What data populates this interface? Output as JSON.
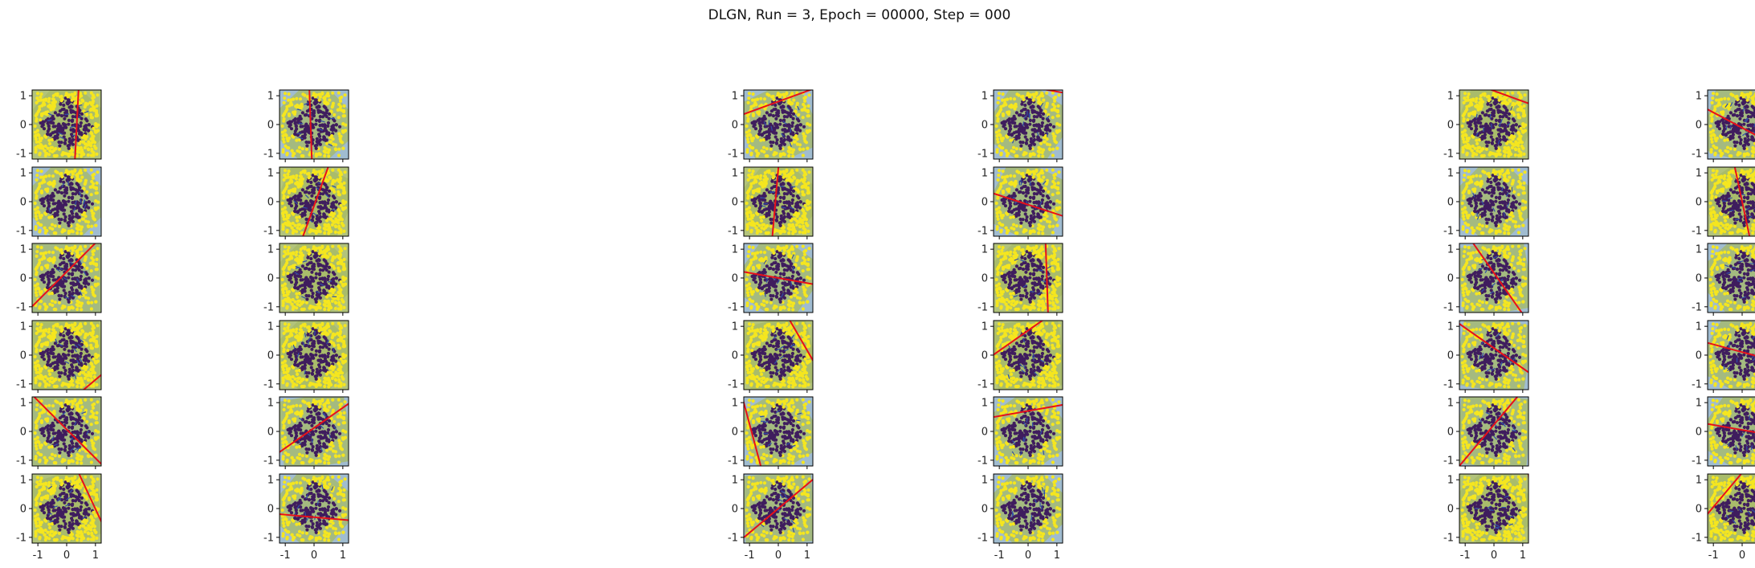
{
  "title": "DLGN, Run = 3, Epoch = 00000, Step = 000",
  "colors": {
    "outer_points": "#f5e61f",
    "inner_points": "#3f1d5e",
    "region_blue": "#8fb0c8",
    "region_green": "#a5b965",
    "arrow": "#2f4fa8",
    "boundary": "#e8101a",
    "axes": "#000000"
  },
  "chart_data": {
    "type": "scatter",
    "description_free": true,
    "rows": 6,
    "cols": 6,
    "xlim": [
      -1.2,
      1.2
    ],
    "ylim": [
      -1.2,
      1.2
    ],
    "xticks": [
      -1,
      0,
      1
    ],
    "yticks": [
      -1,
      0,
      1
    ],
    "xtick_labels": [
      "-1",
      "0",
      "1"
    ],
    "ytick_labels": [
      "-1",
      "0",
      "1"
    ],
    "classes": [
      {
        "region": "|x|+|y| < 1",
        "color": "#3f1d5e"
      },
      {
        "region": "|x|+|y| >= 1",
        "color": "#f5e61f"
      }
    ],
    "panels": [
      {
        "row": 0,
        "col": 0,
        "angle": -3,
        "offset": 0.35,
        "shade": "half"
      },
      {
        "row": 0,
        "col": 1,
        "angle": 2,
        "offset": -0.12,
        "shade": "full"
      },
      {
        "row": 0,
        "col": 2,
        "angle": -70,
        "offset": -0.75,
        "shade": "full"
      },
      {
        "row": 0,
        "col": 3,
        "angle": 80,
        "offset": 1.3,
        "shade": "full"
      },
      {
        "row": 0,
        "col": 4,
        "angle": 70,
        "offset": 1.1,
        "shade": "half"
      },
      {
        "row": 0,
        "col": 5,
        "angle": 62,
        "offset": -0.1,
        "shade": "full"
      },
      {
        "row": 1,
        "col": 0,
        "angle": 90,
        "offset": 1.4,
        "shade": "full"
      },
      {
        "row": 1,
        "col": 1,
        "angle": -20,
        "offset": 0.05,
        "shade": "half"
      },
      {
        "row": 1,
        "col": 2,
        "angle": -5,
        "offset": -0.1,
        "shade": "half"
      },
      {
        "row": 1,
        "col": 3,
        "angle": 72,
        "offset": -0.1,
        "shade": "full"
      },
      {
        "row": 1,
        "col": 4,
        "angle": 90,
        "offset": 1.4,
        "shade": "full"
      },
      {
        "row": 1,
        "col": 5,
        "angle": 12,
        "offset": 0.0,
        "shade": "half"
      },
      {
        "row": 2,
        "col": 0,
        "angle": -45,
        "offset": -0.15,
        "shade": "full"
      },
      {
        "row": 2,
        "col": 1,
        "angle": 0,
        "offset": 1.4,
        "shade": "half"
      },
      {
        "row": 2,
        "col": 2,
        "angle": 80,
        "offset": 0.0,
        "shade": "full"
      },
      {
        "row": 2,
        "col": 3,
        "angle": 2,
        "offset": 0.65,
        "shade": "half"
      },
      {
        "row": 2,
        "col": 4,
        "angle": 35,
        "offset": 0.1,
        "shade": "full"
      },
      {
        "row": 2,
        "col": 5,
        "angle": 3,
        "offset": 1.1,
        "shade": "full"
      },
      {
        "row": 3,
        "col": 0,
        "angle": -50,
        "offset": 1.3,
        "shade": "half"
      },
      {
        "row": 3,
        "col": 1,
        "angle": 90,
        "offset": -1.4,
        "shade": "half"
      },
      {
        "row": 3,
        "col": 2,
        "angle": 30,
        "offset": 0.95,
        "shade": "half"
      },
      {
        "row": 3,
        "col": 3,
        "angle": -55,
        "offset": -0.7,
        "shade": "half"
      },
      {
        "row": 3,
        "col": 4,
        "angle": 55,
        "offset": 0.2,
        "shade": "full"
      },
      {
        "row": 3,
        "col": 5,
        "angle": 75,
        "offset": 0.1,
        "shade": "full"
      },
      {
        "row": 4,
        "col": 0,
        "angle": 45,
        "offset": 0.05,
        "shade": "full"
      },
      {
        "row": 4,
        "col": 1,
        "angle": -55,
        "offset": -0.1,
        "shade": "full"
      },
      {
        "row": 4,
        "col": 2,
        "angle": 15,
        "offset": -0.9,
        "shade": "full"
      },
      {
        "row": 4,
        "col": 3,
        "angle": -80,
        "offset": -0.7,
        "shade": "full"
      },
      {
        "row": 4,
        "col": 4,
        "angle": -40,
        "offset": -0.15,
        "shade": "full"
      },
      {
        "row": 4,
        "col": 5,
        "angle": 80,
        "offset": 0.05,
        "shade": "full"
      },
      {
        "row": 5,
        "col": 0,
        "angle": 25,
        "offset": 0.9,
        "shade": "half"
      },
      {
        "row": 5,
        "col": 1,
        "angle": 85,
        "offset": -0.3,
        "shade": "full"
      },
      {
        "row": 5,
        "col": 2,
        "angle": -50,
        "offset": 0.0,
        "shade": "full"
      },
      {
        "row": 5,
        "col": 3,
        "angle": 90,
        "offset": 1.4,
        "shade": "full"
      },
      {
        "row": 5,
        "col": 4,
        "angle": 5,
        "offset": 1.3,
        "shade": "half"
      },
      {
        "row": 5,
        "col": 5,
        "angle": -40,
        "offset": -0.8,
        "shade": "half"
      }
    ]
  }
}
